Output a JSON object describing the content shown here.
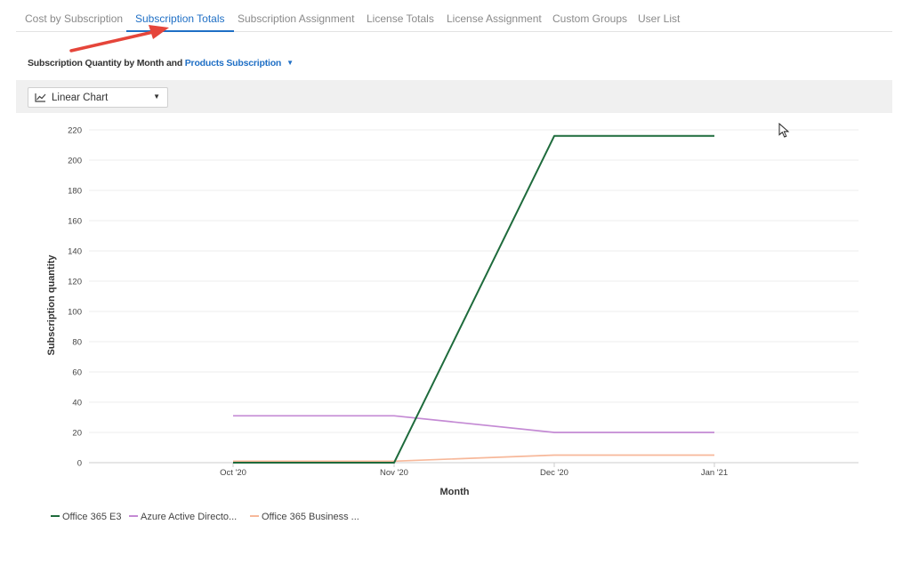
{
  "tabs": [
    {
      "label": "Cost by Subscription",
      "active": false
    },
    {
      "label": "Subscription Totals",
      "active": true
    },
    {
      "label": "Subscription Assignment",
      "active": false
    },
    {
      "label": "License Totals",
      "active": false
    },
    {
      "label": "License Assignment",
      "active": false
    },
    {
      "label": "Custom Groups",
      "active": false
    },
    {
      "label": "User List",
      "active": false
    }
  ],
  "header": {
    "subtitle_prefix": "Subscription Quantity by Month and ",
    "product_link": "Products Subscription"
  },
  "toolbar": {
    "chart_type_label": "Linear Chart"
  },
  "chart_data": {
    "type": "line",
    "categories": [
      "Oct '20",
      "Nov '20",
      "Dec '20",
      "Jan '21"
    ],
    "ylabel": "Subscription quantity",
    "xlabel": "Month",
    "ylim": [
      0,
      220
    ],
    "yticks": [
      0,
      20,
      40,
      60,
      80,
      100,
      120,
      140,
      160,
      180,
      200,
      220
    ],
    "grid": true,
    "legend_position": "bottom-left",
    "series": [
      {
        "name": "Office 365 E3",
        "color": "#1e6b3c",
        "values": [
          0,
          0,
          216,
          216
        ]
      },
      {
        "name": "Azure Active Directo...",
        "color": "#c48ad4",
        "values": [
          31,
          31,
          20,
          20
        ]
      },
      {
        "name": "Office 365 Business ...",
        "color": "#f7b89a",
        "values": [
          1,
          1,
          5,
          5
        ]
      }
    ]
  }
}
